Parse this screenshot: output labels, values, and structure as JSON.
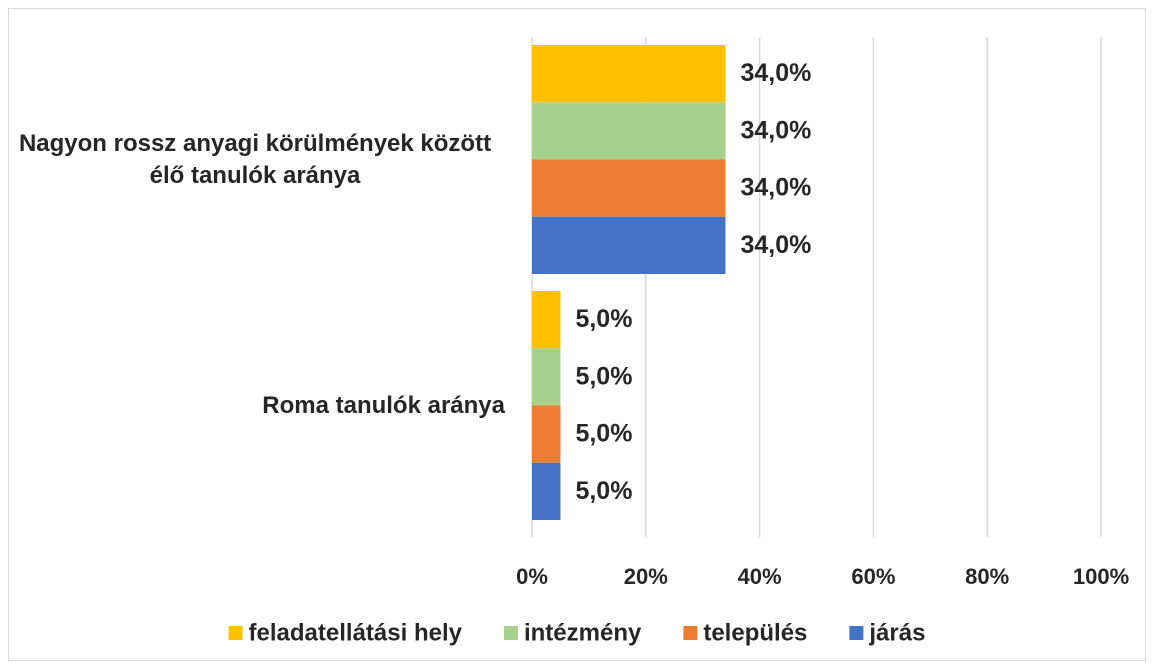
{
  "chart_data": {
    "type": "bar",
    "orientation": "horizontal",
    "categories": [
      "Nagyon rossz anyagi körülmények között élő tanulók aránya",
      "Roma tanulók aránya"
    ],
    "series": [
      {
        "name": "feladatellátási hely",
        "color": "#ffc000",
        "values": [
          34,
          5
        ],
        "value_labels": [
          "34,0%",
          "5,0%"
        ]
      },
      {
        "name": "intézmény",
        "color": "#a9d18e",
        "values": [
          34,
          5
        ],
        "value_labels": [
          "34,0%",
          "5,0%"
        ]
      },
      {
        "name": "település",
        "color": "#ed7d31",
        "values": [
          34,
          5
        ],
        "value_labels": [
          "34,0%",
          "5,0%"
        ]
      },
      {
        "name": "járás",
        "color": "#4472c4",
        "values": [
          34,
          5
        ],
        "value_labels": [
          "34,0%",
          "5,0%"
        ]
      }
    ],
    "xlim": [
      0,
      100
    ],
    "xticks": [
      {
        "value": 0,
        "label": "0%"
      },
      {
        "value": 20,
        "label": "20%"
      },
      {
        "value": 40,
        "label": "40%"
      },
      {
        "value": 60,
        "label": "60%"
      },
      {
        "value": 80,
        "label": "80%"
      },
      {
        "value": 100,
        "label": "100%"
      }
    ],
    "grid": true,
    "legend": "bottom"
  }
}
